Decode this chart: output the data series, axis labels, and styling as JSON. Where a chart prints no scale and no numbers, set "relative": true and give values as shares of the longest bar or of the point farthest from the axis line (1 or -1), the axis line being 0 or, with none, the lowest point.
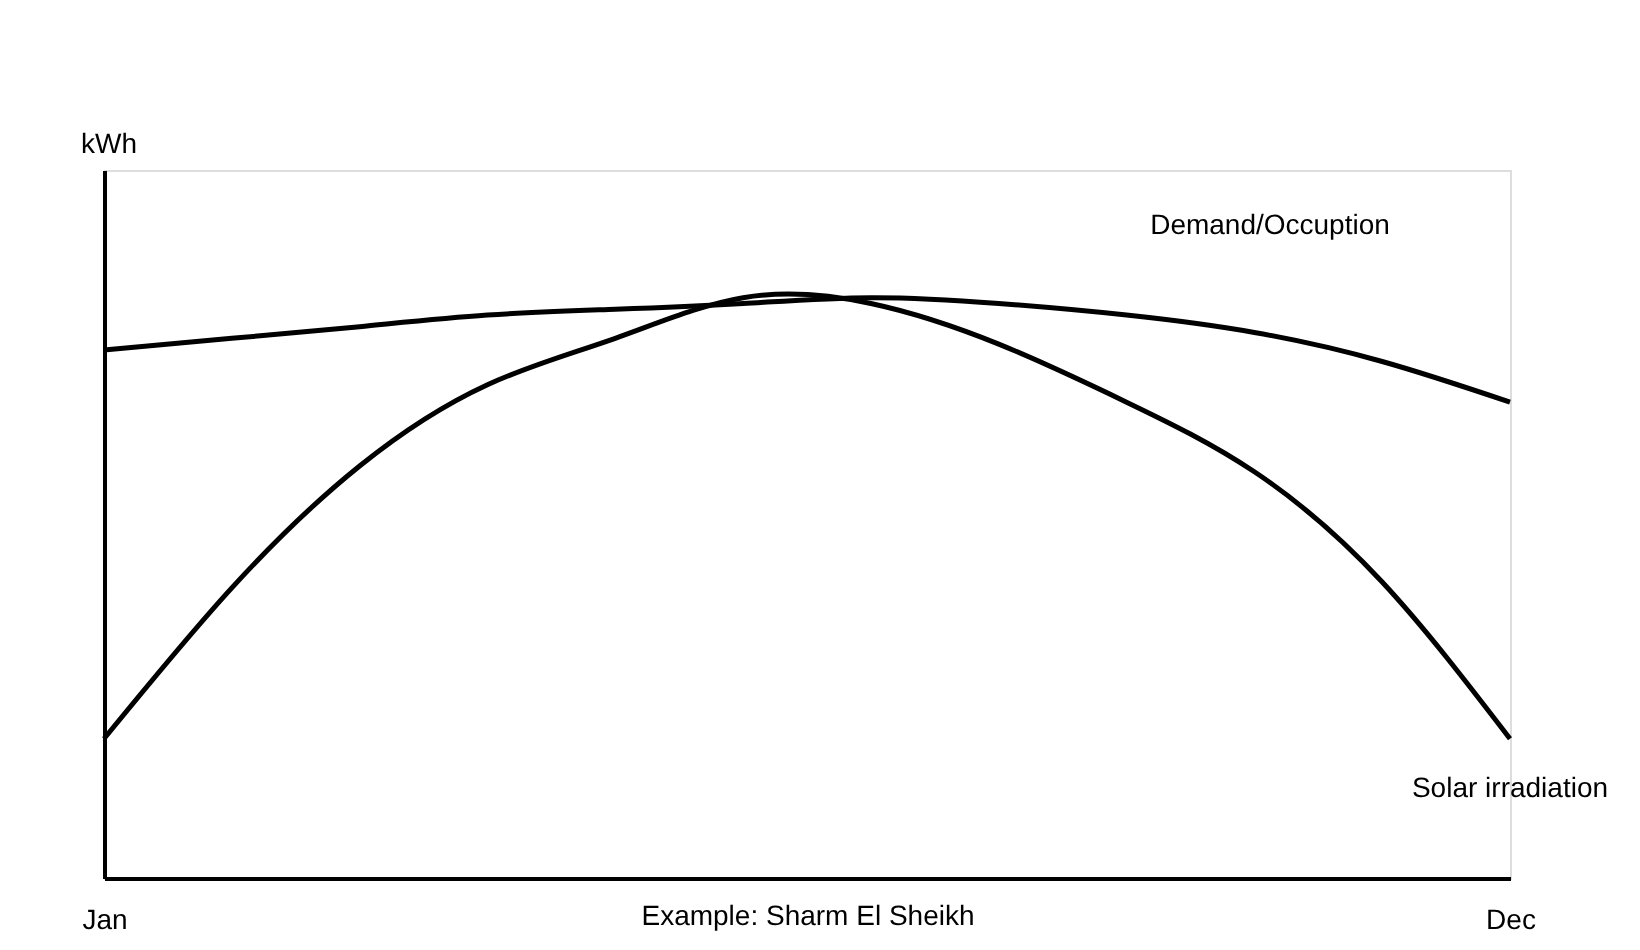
{
  "chart_data": {
    "type": "line",
    "relative": true,
    "xlabel": "Example: Sharm El Sheikh",
    "ylabel": "kWh",
    "categories": [
      "Jan",
      null,
      null,
      null,
      null,
      null,
      null,
      null,
      null,
      null,
      null,
      "Dec"
    ],
    "series": [
      {
        "name": "Demand/Occuption",
        "color": "#000000",
        "values": [
          0.91,
          0.93,
          0.95,
          0.97,
          0.98,
          0.99,
          1.0,
          0.99,
          0.97,
          0.94,
          0.89,
          0.82
        ]
      },
      {
        "name": "Solar irradiation",
        "color": "#000000",
        "values": [
          0.24,
          0.5,
          0.71,
          0.85,
          0.93,
          1.0,
          0.99,
          0.92,
          0.82,
          0.7,
          0.51,
          0.24
        ]
      }
    ],
    "legend": false,
    "grid": false,
    "marker": "none",
    "line_style": "solid"
  }
}
